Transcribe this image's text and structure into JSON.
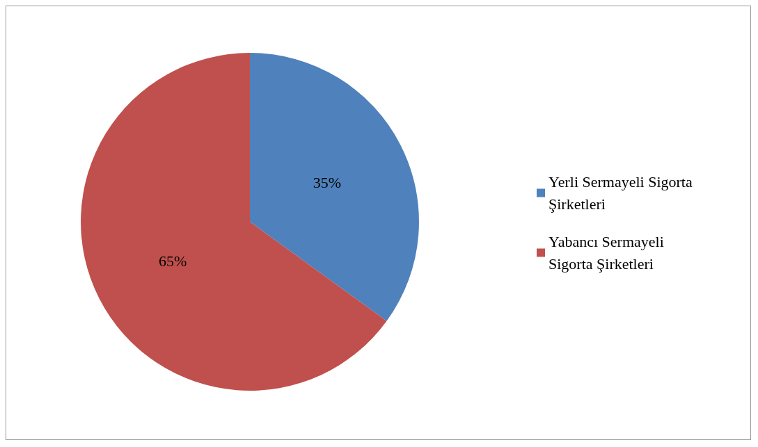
{
  "chart_data": {
    "type": "pie",
    "categories": [
      "Yerli Sermayeli Sigorta Şirketleri",
      "Yabancı Sermayeli Sigorta Şirketleri"
    ],
    "values": [
      35,
      65
    ],
    "colors": [
      "#4f81bd",
      "#c0504d"
    ],
    "value_labels": [
      "35%",
      "65%"
    ],
    "legend": "right"
  }
}
